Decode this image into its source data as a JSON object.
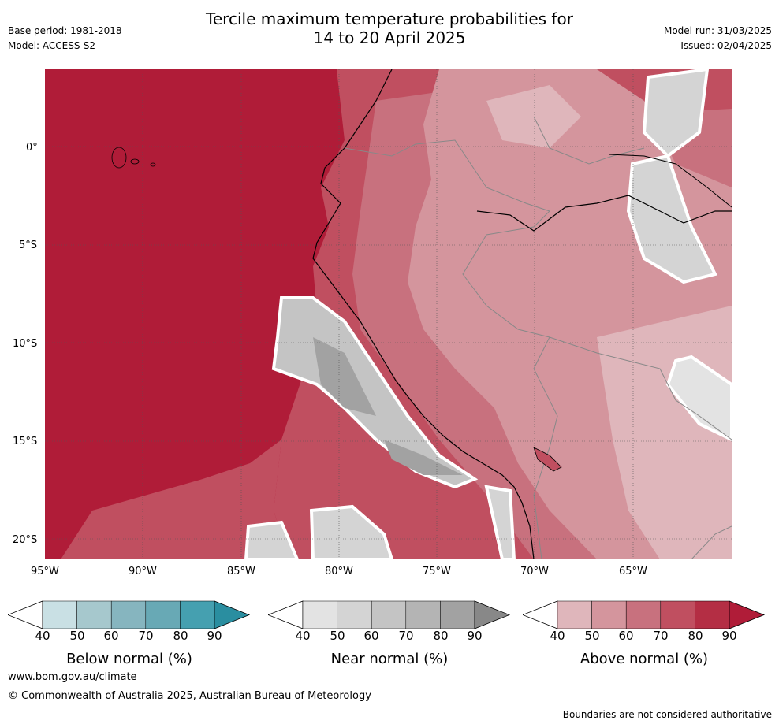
{
  "header": {
    "title_line1": "Tercile maximum temperature probabilities for",
    "title_line2": "14 to 20 April 2025",
    "base_period": "Base period: 1981-2018",
    "model": "Model: ACCESS-S2",
    "model_run": "Model run: 31/03/2025",
    "issued": "Issued: 02/04/2025"
  },
  "map": {
    "lat_labels": [
      "0°",
      "5°S",
      "10°S",
      "15°S",
      "20°S"
    ],
    "lon_labels": [
      "95°W",
      "90°W",
      "85°W",
      "80°W",
      "75°W",
      "70°W",
      "65°W"
    ]
  },
  "colorbars": [
    {
      "label": "Below normal (%)",
      "ticks": [
        "40",
        "50",
        "60",
        "70",
        "80",
        "90"
      ],
      "colors": [
        "#ffffff",
        "#c9e0e4",
        "#a6c8cd",
        "#86b5bf",
        "#68a9b5",
        "#45a0b0",
        "#2a8ea0"
      ]
    },
    {
      "label": "Near normal (%)",
      "ticks": [
        "40",
        "50",
        "60",
        "70",
        "80",
        "90"
      ],
      "colors": [
        "#ffffff",
        "#e3e3e3",
        "#d4d4d4",
        "#c4c4c4",
        "#b4b4b4",
        "#a2a2a2",
        "#888888"
      ]
    },
    {
      "label": "Above normal (%)",
      "ticks": [
        "40",
        "50",
        "60",
        "70",
        "80",
        "90"
      ],
      "colors": [
        "#ffffff",
        "#dfb6bb",
        "#d4959d",
        "#c8717e",
        "#c04f60",
        "#b42e44",
        "#b01c38"
      ]
    }
  ],
  "footer": {
    "url": "www.bom.gov.au/climate",
    "copyright": "© Commonwealth of Australia 2025, Australian Bureau of Meteorology",
    "disclaimer": "Boundaries are not considered authoritative"
  }
}
